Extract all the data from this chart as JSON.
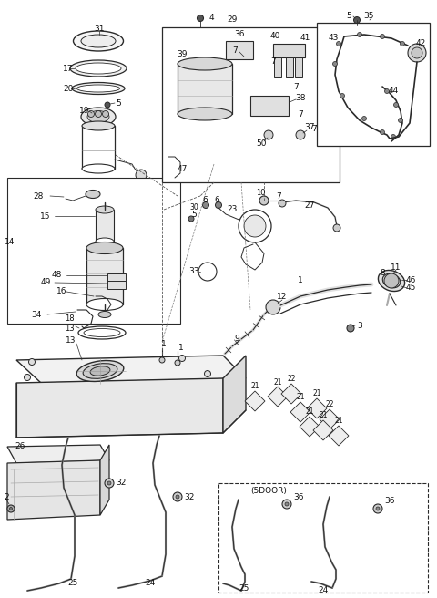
{
  "bg": "#ffffff",
  "lc": "#2a2a2a",
  "tc": "#111111",
  "fig_w": 4.8,
  "fig_h": 6.56,
  "dpi": 100
}
